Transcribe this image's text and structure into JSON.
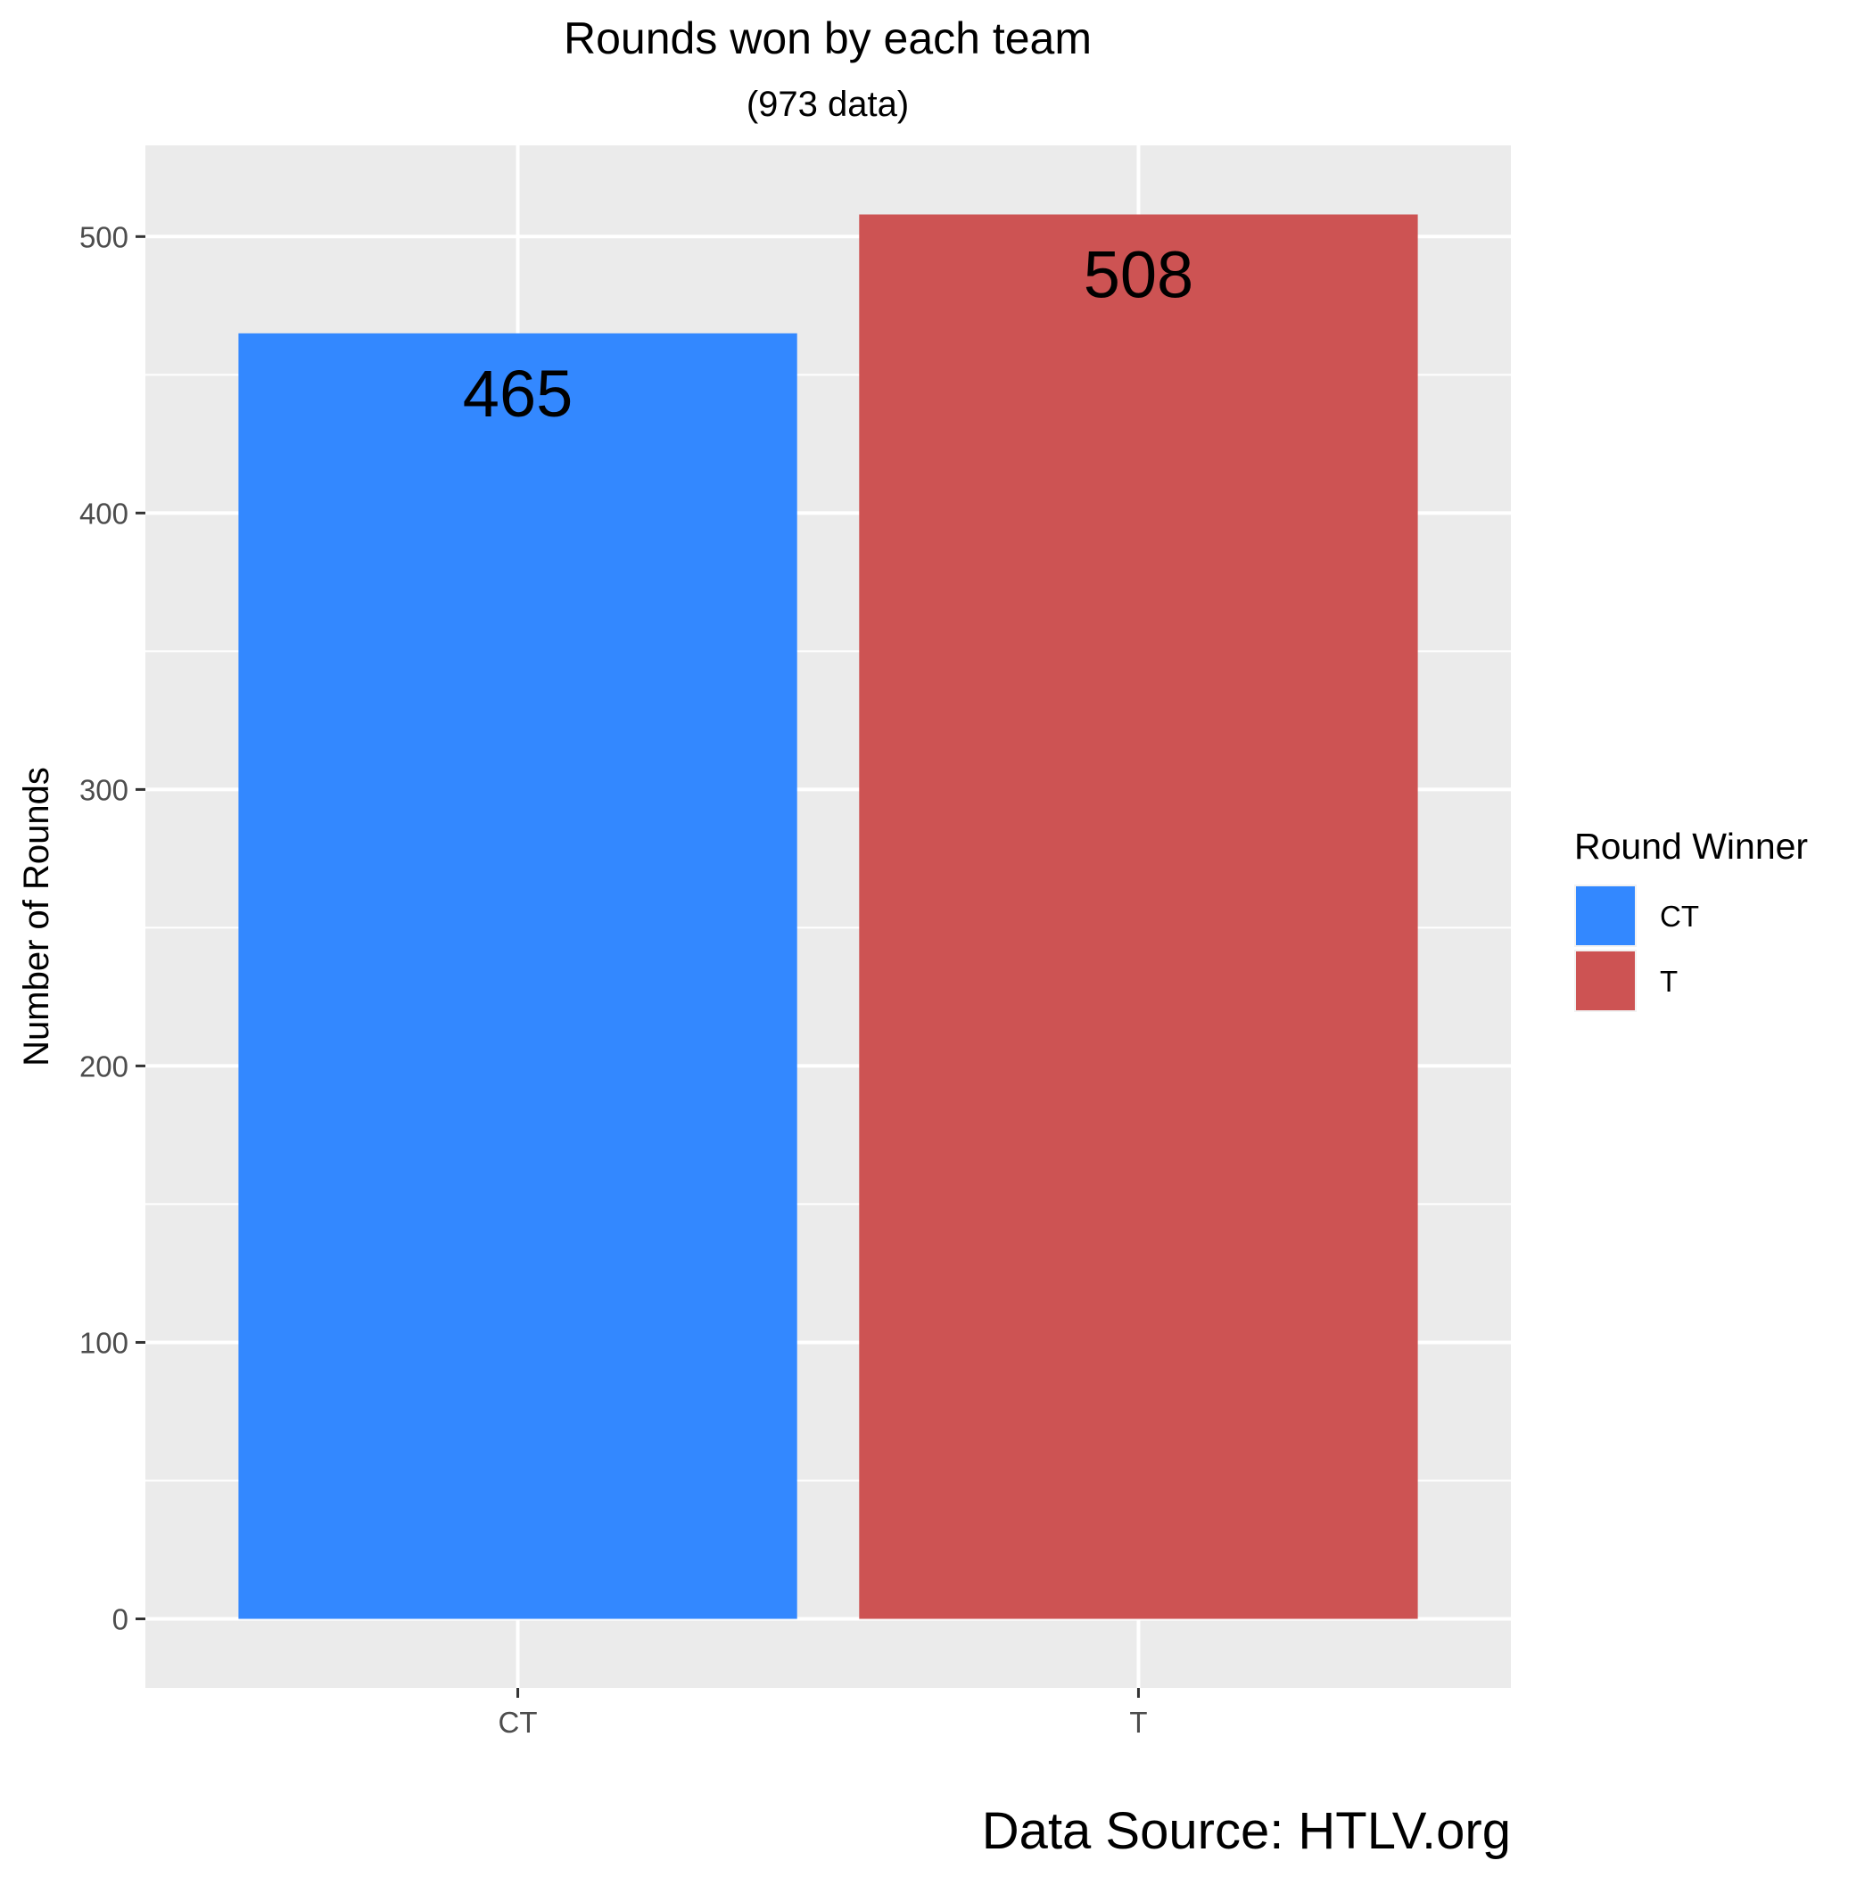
{
  "chart_data": {
    "type": "bar",
    "title": "Rounds won by each team",
    "subtitle": "(973 data)",
    "xlabel": "",
    "ylabel": "Number of Rounds",
    "categories": [
      "CT",
      "T"
    ],
    "values": [
      465,
      508
    ],
    "data_labels": [
      "465",
      "508"
    ],
    "colors": [
      "#3388FF",
      "#CD5353"
    ],
    "ylim": [
      -25,
      533
    ],
    "yticks": [
      0,
      100,
      200,
      300,
      400,
      500
    ],
    "ytick_labels": [
      "0",
      "100",
      "200",
      "300",
      "400",
      "500"
    ],
    "grid": true,
    "legend": {
      "title": "Round Winner",
      "position": "right",
      "items": [
        {
          "label": "CT",
          "color": "#3388FF"
        },
        {
          "label": "T",
          "color": "#CD5353"
        }
      ]
    },
    "caption": "Data Source: HTLV.org"
  }
}
